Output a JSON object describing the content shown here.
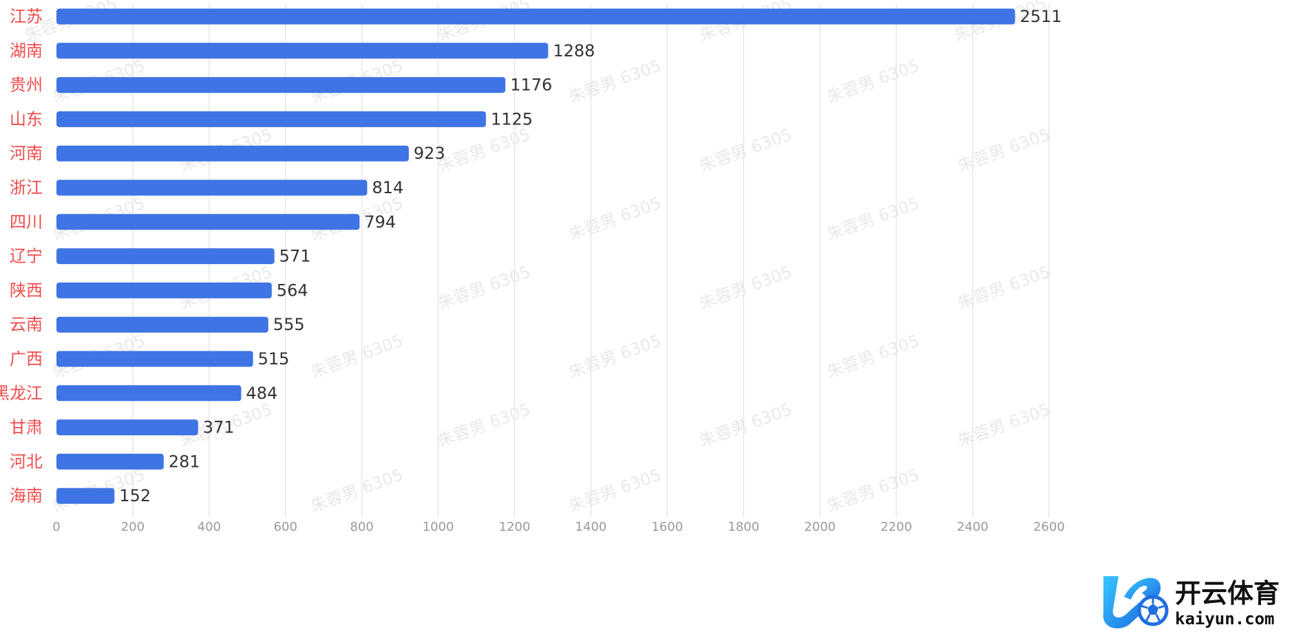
{
  "chart_data": {
    "type": "bar",
    "orientation": "horizontal",
    "categories": [
      "江苏",
      "湖南",
      "贵州",
      "山东",
      "河南",
      "浙江",
      "四川",
      "辽宁",
      "陕西",
      "云南",
      "广西",
      "黑龙江",
      "甘肃",
      "河北",
      "海南"
    ],
    "values": [
      2511,
      1288,
      1176,
      1125,
      923,
      814,
      794,
      571,
      564,
      555,
      515,
      484,
      371,
      281,
      152
    ],
    "x_ticks": [
      0,
      200,
      400,
      600,
      800,
      1000,
      1200,
      1400,
      1600,
      1800,
      2000,
      2200,
      2400,
      2600
    ],
    "xlim": [
      0,
      2600
    ],
    "grid": "vertical",
    "legend": "none"
  },
  "watermark": {
    "text": "朱蓉男 6305"
  },
  "logo": {
    "name": "开云体育",
    "domain": "kaiyun.com",
    "icon": "k-soccer-ball-icon"
  },
  "colors": {
    "bar": "#3e74e3",
    "category_label": "#f04b4b",
    "value_label": "#333333",
    "tick_label": "#999999",
    "grid": "#e6e6e6",
    "watermark": "#e9e9e9",
    "logo_blue": "#2aa0f0",
    "logo_text": "#111111"
  }
}
